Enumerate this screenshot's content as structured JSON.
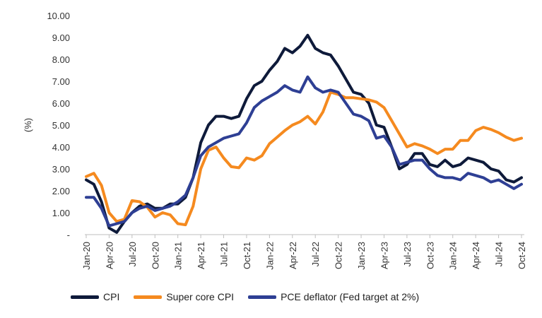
{
  "chart_data": {
    "type": "line",
    "ylabel": "(%)",
    "ylim": [
      0,
      10
    ],
    "y_ticks": [
      "-",
      "1.00",
      "2.00",
      "3.00",
      "4.00",
      "5.00",
      "6.00",
      "7.00",
      "8.00",
      "9.00",
      "10.00"
    ],
    "x_tick_labels": [
      "Jan-20",
      "Apr-20",
      "Jul-20",
      "Oct-20",
      "Jan-21",
      "Apr-21",
      "Jul-21",
      "Oct-21",
      "Jan-22",
      "Apr-22",
      "Jul-22",
      "Oct-22",
      "Jan-23",
      "Apr-23",
      "Jul-23",
      "Oct-23",
      "Jan-24",
      "Apr-24",
      "Jul-24",
      "Oct-24"
    ],
    "x": [
      "Jan-20",
      "Feb-20",
      "Mar-20",
      "Apr-20",
      "May-20",
      "Jun-20",
      "Jul-20",
      "Aug-20",
      "Sep-20",
      "Oct-20",
      "Nov-20",
      "Dec-20",
      "Jan-21",
      "Feb-21",
      "Mar-21",
      "Apr-21",
      "May-21",
      "Jun-21",
      "Jul-21",
      "Aug-21",
      "Sep-21",
      "Oct-21",
      "Nov-21",
      "Dec-21",
      "Jan-22",
      "Feb-22",
      "Mar-22",
      "Apr-22",
      "May-22",
      "Jun-22",
      "Jul-22",
      "Aug-22",
      "Sep-22",
      "Oct-22",
      "Nov-22",
      "Dec-22",
      "Jan-23",
      "Feb-23",
      "Mar-23",
      "Apr-23",
      "May-23",
      "Jun-23",
      "Jul-23",
      "Aug-23",
      "Sep-23",
      "Oct-23",
      "Nov-23",
      "Dec-23",
      "Jan-24",
      "Feb-24",
      "Mar-24",
      "Apr-24",
      "May-24",
      "Jun-24",
      "Jul-24",
      "Aug-24",
      "Sep-24",
      "Oct-24"
    ],
    "series": [
      {
        "name": "CPI",
        "color": "#0e1a3a",
        "values": [
          2.5,
          2.3,
          1.5,
          0.3,
          0.1,
          0.6,
          1.0,
          1.3,
          1.4,
          1.2,
          1.2,
          1.4,
          1.4,
          1.7,
          2.6,
          4.2,
          5.0,
          5.4,
          5.4,
          5.3,
          5.4,
          6.2,
          6.8,
          7.0,
          7.5,
          7.9,
          8.5,
          8.3,
          8.6,
          9.1,
          8.5,
          8.3,
          8.2,
          7.7,
          7.1,
          6.5,
          6.4,
          6.0,
          5.0,
          4.9,
          4.0,
          3.0,
          3.2,
          3.7,
          3.7,
          3.2,
          3.1,
          3.4,
          3.1,
          3.2,
          3.5,
          3.4,
          3.3,
          3.0,
          2.9,
          2.5,
          2.4,
          2.6
        ]
      },
      {
        "name": "Super core CPI",
        "color": "#f58a1f",
        "values": [
          2.65,
          2.8,
          2.25,
          1.0,
          0.6,
          0.7,
          1.55,
          1.5,
          1.25,
          0.8,
          1.0,
          0.9,
          0.5,
          0.45,
          1.3,
          3.0,
          3.85,
          4.0,
          3.5,
          3.1,
          3.05,
          3.5,
          3.4,
          3.6,
          4.15,
          4.45,
          4.75,
          5.0,
          5.15,
          5.4,
          5.05,
          5.6,
          6.5,
          6.4,
          6.25,
          6.25,
          6.2,
          6.15,
          6.05,
          5.8,
          5.2,
          4.6,
          4.0,
          4.15,
          4.05,
          3.9,
          3.7,
          3.9,
          3.9,
          4.3,
          4.3,
          4.75,
          4.9,
          4.8,
          4.65,
          4.45,
          4.3,
          4.4
        ]
      },
      {
        "name": "PCE deflator (Fed target at 2%)",
        "color": "#2e3f94",
        "values": [
          1.7,
          1.7,
          1.2,
          0.4,
          0.5,
          0.6,
          1.0,
          1.2,
          1.3,
          1.1,
          1.2,
          1.3,
          1.5,
          1.8,
          2.6,
          3.6,
          4.0,
          4.2,
          4.4,
          4.5,
          4.6,
          5.1,
          5.8,
          6.1,
          6.3,
          6.5,
          6.8,
          6.6,
          6.5,
          7.2,
          6.7,
          6.5,
          6.6,
          6.5,
          6.0,
          5.5,
          5.4,
          5.2,
          4.4,
          4.5,
          4.0,
          3.2,
          3.3,
          3.4,
          3.4,
          3.0,
          2.7,
          2.6,
          2.6,
          2.5,
          2.8,
          2.7,
          2.6,
          2.4,
          2.5,
          2.3,
          2.1,
          2.3
        ]
      }
    ],
    "grid": false,
    "legend_position": "bottom"
  }
}
